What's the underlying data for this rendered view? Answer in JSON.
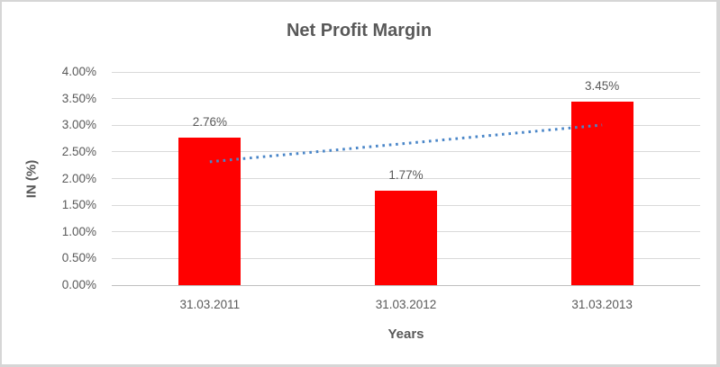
{
  "chart_data": {
    "type": "bar",
    "title": "Net Profit Margin",
    "xlabel": "Years",
    "ylabel": "IN (%)",
    "categories": [
      "31.03.2011",
      "31.03.2012",
      "31.03.2013"
    ],
    "values": [
      2.76,
      1.77,
      3.45
    ],
    "data_labels": [
      "2.76%",
      "1.77%",
      "3.45%"
    ],
    "ylim": [
      0,
      4.0
    ],
    "ytick_step": 0.5,
    "yticks": [
      "4.00%",
      "3.50%",
      "3.00%",
      "2.50%",
      "2.00%",
      "1.50%",
      "1.00%",
      "0.50%",
      "0.00%"
    ],
    "grid": true,
    "legend": false,
    "bar_color": "#FF0000",
    "trendline": {
      "type": "linear",
      "style": "dotted",
      "color": "#4A86C8"
    },
    "colors": {
      "text": "#595959",
      "grid": "#D9D9D9",
      "axis_line": "#BFBFBF",
      "border": "#D6D6D6",
      "background": "#FFFFFF"
    }
  }
}
